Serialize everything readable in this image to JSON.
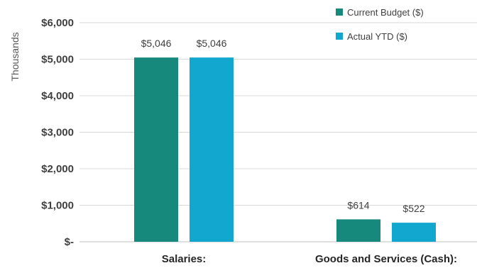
{
  "chart_data": {
    "type": "bar",
    "ylabel": "Thousands",
    "categories": [
      "Salaries:",
      "Goods and Services (Cash):"
    ],
    "series": [
      {
        "name": "Current Budget ($)",
        "color": "#16897c",
        "values": [
          5046,
          614
        ],
        "labels": [
          "$5,046",
          "$614"
        ]
      },
      {
        "name": "Actual YTD ($)",
        "color": "#12a7cf",
        "values": [
          5046,
          522
        ],
        "labels": [
          "$5,046",
          "$522"
        ]
      }
    ],
    "ylim": [
      0,
      6000
    ],
    "yticks": [
      0,
      1000,
      2000,
      3000,
      4000,
      5000,
      6000
    ],
    "ytick_labels": [
      "$-",
      "$1,000",
      "$2,000",
      "$3,000",
      "$4,000",
      "$5,000",
      "$6,000"
    ],
    "grid": true,
    "legend_position": "top-right"
  }
}
